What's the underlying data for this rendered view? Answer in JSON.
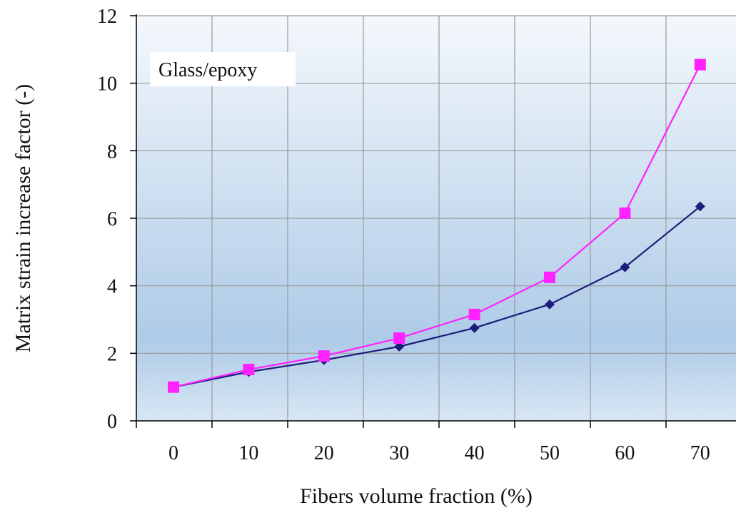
{
  "chart_data": {
    "type": "line",
    "categories": [
      "0",
      "10",
      "20",
      "30",
      "40",
      "50",
      "60",
      "70"
    ],
    "x": [
      0,
      10,
      20,
      30,
      40,
      50,
      60,
      70
    ],
    "series": [
      {
        "values": [
          1.0,
          1.45,
          1.8,
          2.2,
          2.75,
          3.45,
          4.55,
          6.35
        ],
        "color": "#1c1c7a",
        "marker": "diamond"
      },
      {
        "values": [
          1.0,
          1.52,
          1.92,
          2.45,
          3.15,
          4.25,
          6.15,
          10.55
        ],
        "color": "#ff22ff",
        "marker": "square"
      }
    ],
    "ylim": [
      0,
      12
    ],
    "yticks": [
      0,
      2,
      4,
      6,
      8,
      10,
      12
    ],
    "xlabel": "Fibers volume fraction (%)",
    "ylabel": "Matrix strain increase factor (-)",
    "annotation": "Glass/epoxy",
    "grid": true,
    "legend": "none",
    "plot_background": "gradient-blue"
  }
}
